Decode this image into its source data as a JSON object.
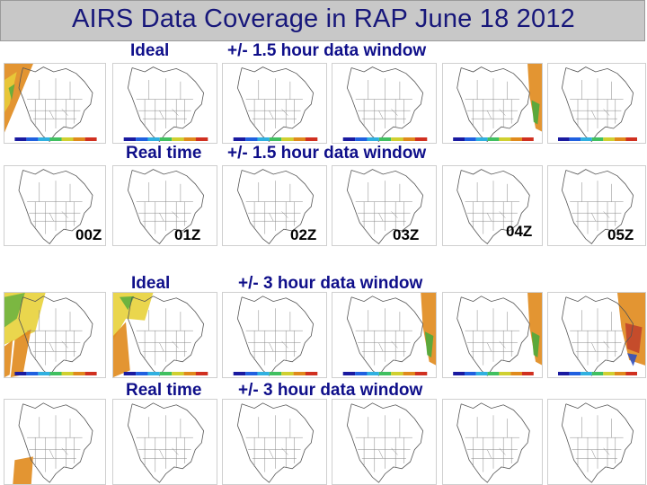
{
  "title": "AIRS Data Coverage in RAP June 18 2012",
  "rows": [
    {
      "label_left": "Ideal",
      "label_right": "+/- 1.5 hour data window"
    },
    {
      "label_left": "Real time",
      "label_right": "+/- 1.5 hour data window"
    },
    {
      "label_left": "Ideal",
      "label_right": "+/- 3 hour data window"
    },
    {
      "label_left": "Real time",
      "label_right": "+/- 3 hour data window"
    }
  ],
  "times": [
    "00Z",
    "01Z",
    "02Z",
    "03Z",
    "04Z",
    "05Z"
  ],
  "colors": {
    "title_text": "#17177a",
    "label_text": "#0f0f8a",
    "title_bar": "#c8c8c8",
    "coverage_orange": "#e08a1c",
    "coverage_yellow": "#e8d23a",
    "coverage_green": "#4caa3c"
  },
  "panels": [
    {
      "id": "r1-c1",
      "coverage": "west-swath-orange"
    },
    {
      "id": "r1-c2",
      "coverage": "none"
    },
    {
      "id": "r1-c3",
      "coverage": "none"
    },
    {
      "id": "r1-c4",
      "coverage": "none"
    },
    {
      "id": "r1-c5",
      "coverage": "east-swath-orange"
    },
    {
      "id": "r1-c6",
      "coverage": "none"
    },
    {
      "id": "r2-c1",
      "coverage": "none"
    },
    {
      "id": "r2-c2",
      "coverage": "none"
    },
    {
      "id": "r2-c3",
      "coverage": "none"
    },
    {
      "id": "r2-c4",
      "coverage": "none"
    },
    {
      "id": "r2-c5",
      "coverage": "none"
    },
    {
      "id": "r2-c6",
      "coverage": "none"
    },
    {
      "id": "r3-c1",
      "coverage": "west-swaths-yellow"
    },
    {
      "id": "r3-c2",
      "coverage": "west-swath-yellow"
    },
    {
      "id": "r3-c3",
      "coverage": "none"
    },
    {
      "id": "r3-c4",
      "coverage": "east-swath-orange"
    },
    {
      "id": "r3-c5",
      "coverage": "east-swath-orange"
    },
    {
      "id": "r3-c6",
      "coverage": "east-swath-dark"
    },
    {
      "id": "r4-c1",
      "coverage": "sw-patch-orange"
    },
    {
      "id": "r4-c2",
      "coverage": "none"
    },
    {
      "id": "r4-c3",
      "coverage": "none"
    },
    {
      "id": "r4-c4",
      "coverage": "none"
    },
    {
      "id": "r4-c5",
      "coverage": "none"
    },
    {
      "id": "r4-c6",
      "coverage": "none"
    }
  ]
}
